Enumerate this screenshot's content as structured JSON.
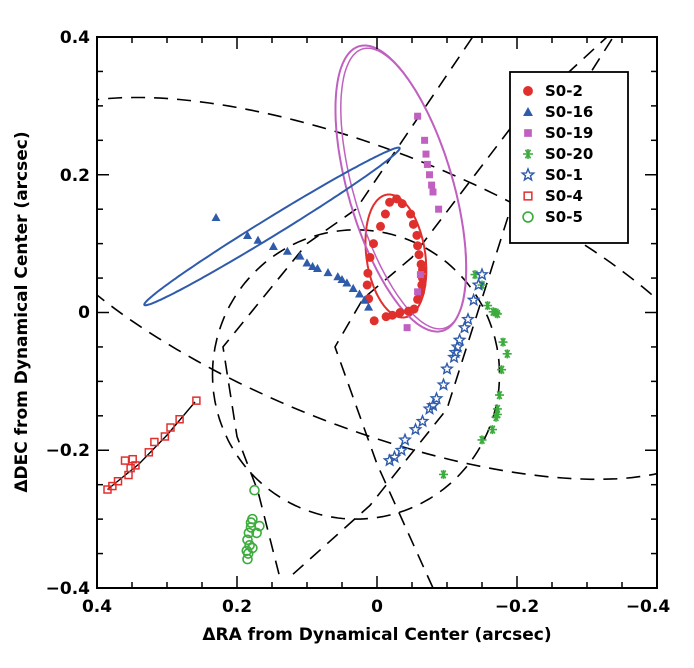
{
  "chart_data": {
    "type": "scatter",
    "title": "",
    "xlabel": "ΔRA from Dynamical Center (arcsec)",
    "ylabel": "ΔDEC from Dynamical Center (arcsec)",
    "xlim": [
      0.4,
      -0.4
    ],
    "ylim": [
      -0.4,
      0.4
    ],
    "x_ticks": [
      "0.4",
      "0.2",
      "0",
      "−0.2",
      "−0.4"
    ],
    "y_ticks": [
      "−0.4",
      "−0.2",
      "0",
      "0.2",
      "0.4"
    ],
    "x_tick_values": [
      0.4,
      0.2,
      0,
      -0.2,
      -0.4
    ],
    "y_tick_values": [
      -0.4,
      -0.2,
      0,
      0.2,
      0.4
    ],
    "legend_position": "top-right",
    "series": [
      {
        "name": "S0-2",
        "color": "#e0302e",
        "marker": "filled-circle",
        "points": [
          [
            -0.028,
            0.165
          ],
          [
            -0.036,
            0.158
          ],
          [
            -0.048,
            0.143
          ],
          [
            -0.052,
            0.128
          ],
          [
            -0.057,
            0.112
          ],
          [
            -0.058,
            0.097
          ],
          [
            -0.06,
            0.084
          ],
          [
            -0.063,
            0.07
          ],
          [
            -0.065,
            0.062
          ],
          [
            -0.065,
            0.05
          ],
          [
            -0.064,
            0.04
          ],
          [
            -0.062,
            0.029
          ],
          [
            -0.058,
            0.019
          ],
          [
            -0.053,
            0.005
          ],
          [
            -0.045,
            0.002
          ],
          [
            -0.033,
            0.0
          ],
          [
            -0.022,
            -0.004
          ],
          [
            -0.013,
            -0.006
          ],
          [
            0.004,
            -0.012
          ],
          [
            0.012,
            0.02
          ],
          [
            0.014,
            0.04
          ],
          [
            0.013,
            0.057
          ],
          [
            0.01,
            0.08
          ],
          [
            0.005,
            0.1
          ],
          [
            -0.005,
            0.125
          ],
          [
            -0.012,
            0.143
          ],
          [
            -0.018,
            0.16
          ]
        ]
      },
      {
        "name": "S0-16",
        "color": "#2f5bab",
        "marker": "filled-triangle",
        "points": [
          [
            0.23,
            0.138
          ],
          [
            0.185,
            0.112
          ],
          [
            0.17,
            0.105
          ],
          [
            0.148,
            0.096
          ],
          [
            0.128,
            0.089
          ],
          [
            0.11,
            0.082
          ],
          [
            0.1,
            0.072
          ],
          [
            0.092,
            0.067
          ],
          [
            0.085,
            0.064
          ],
          [
            0.07,
            0.058
          ],
          [
            0.056,
            0.052
          ],
          [
            0.05,
            0.048
          ],
          [
            0.043,
            0.043
          ],
          [
            0.034,
            0.035
          ],
          [
            0.025,
            0.027
          ],
          [
            0.018,
            0.018
          ],
          [
            0.012,
            0.008
          ]
        ]
      },
      {
        "name": "S0-19",
        "color": "#c060c0",
        "marker": "filled-square",
        "points": [
          [
            -0.058,
            0.285
          ],
          [
            -0.068,
            0.25
          ],
          [
            -0.07,
            0.23
          ],
          [
            -0.072,
            0.215
          ],
          [
            -0.075,
            0.2
          ],
          [
            -0.078,
            0.185
          ],
          [
            -0.08,
            0.175
          ],
          [
            -0.088,
            0.15
          ],
          [
            -0.062,
            0.055
          ],
          [
            -0.058,
            0.03
          ],
          [
            -0.043,
            -0.022
          ]
        ]
      },
      {
        "name": "S0-20",
        "color": "#3cac3c",
        "marker": "asterisk",
        "points": [
          [
            -0.14,
            0.055
          ],
          [
            -0.15,
            0.04
          ],
          [
            -0.158,
            0.01
          ],
          [
            -0.166,
            0.001
          ],
          [
            -0.17,
            0.0
          ],
          [
            -0.172,
            -0.002
          ],
          [
            -0.18,
            -0.043
          ],
          [
            -0.186,
            -0.06
          ],
          [
            -0.178,
            -0.083
          ],
          [
            -0.175,
            -0.12
          ],
          [
            -0.172,
            -0.14
          ],
          [
            -0.172,
            -0.148
          ],
          [
            -0.17,
            -0.152
          ],
          [
            -0.165,
            -0.17
          ],
          [
            -0.15,
            -0.185
          ],
          [
            -0.095,
            -0.235
          ]
        ]
      },
      {
        "name": "S0-1",
        "color": "#2f5bab",
        "marker": "open-star",
        "points": [
          [
            -0.15,
            0.055
          ],
          [
            -0.145,
            0.04
          ],
          [
            -0.138,
            0.018
          ],
          [
            -0.13,
            -0.01
          ],
          [
            -0.125,
            -0.022
          ],
          [
            -0.118,
            -0.04
          ],
          [
            -0.115,
            -0.05
          ],
          [
            -0.112,
            -0.058
          ],
          [
            -0.11,
            -0.065
          ],
          [
            -0.1,
            -0.082
          ],
          [
            -0.095,
            -0.105
          ],
          [
            -0.085,
            -0.125
          ],
          [
            -0.08,
            -0.135
          ],
          [
            -0.075,
            -0.14
          ],
          [
            -0.065,
            -0.158
          ],
          [
            -0.055,
            -0.17
          ],
          [
            -0.04,
            -0.185
          ],
          [
            -0.035,
            -0.2
          ],
          [
            -0.025,
            -0.21
          ],
          [
            -0.018,
            -0.215
          ]
        ]
      },
      {
        "name": "S0-4",
        "color": "#e0302e",
        "marker": "open-square",
        "points": [
          [
            0.385,
            -0.257
          ],
          [
            0.378,
            -0.252
          ],
          [
            0.37,
            -0.245
          ],
          [
            0.355,
            -0.236
          ],
          [
            0.352,
            -0.226
          ],
          [
            0.345,
            -0.222
          ],
          [
            0.36,
            -0.215
          ],
          [
            0.349,
            -0.213
          ],
          [
            0.326,
            -0.203
          ],
          [
            0.318,
            -0.188
          ],
          [
            0.303,
            -0.18
          ],
          [
            0.295,
            -0.167
          ],
          [
            0.282,
            -0.155
          ],
          [
            0.258,
            -0.128
          ]
        ]
      },
      {
        "name": "S0-5",
        "color": "#3cac3c",
        "marker": "open-circle",
        "points": [
          [
            0.175,
            -0.258
          ],
          [
            0.178,
            -0.3
          ],
          [
            0.18,
            -0.312
          ],
          [
            0.183,
            -0.32
          ],
          [
            0.185,
            -0.33
          ],
          [
            0.182,
            -0.338
          ],
          [
            0.178,
            -0.342
          ],
          [
            0.186,
            -0.346
          ],
          [
            0.184,
            -0.35
          ],
          [
            0.185,
            -0.358
          ],
          [
            0.172,
            -0.32
          ],
          [
            0.168,
            -0.31
          ],
          [
            0.18,
            -0.305
          ]
        ]
      }
    ]
  }
}
